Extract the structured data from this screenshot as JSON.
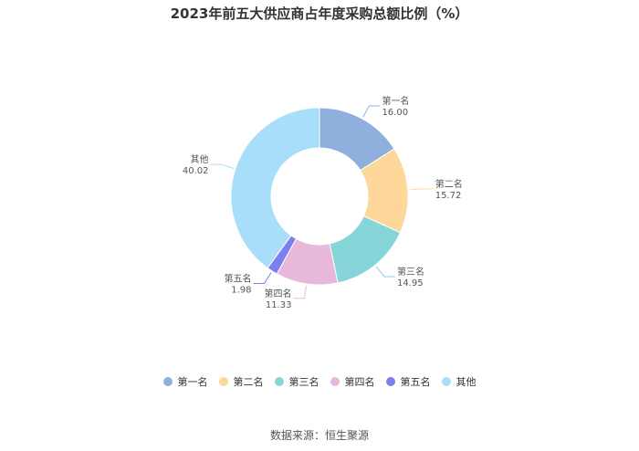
{
  "chart_data": {
    "type": "pie",
    "title": "2023年前五大供应商占年度采购总额比例（%）",
    "categories": [
      "第一名",
      "第二名",
      "第三名",
      "第四名",
      "第五名",
      "其他"
    ],
    "values": [
      16.0,
      15.72,
      14.95,
      11.33,
      1.98,
      40.02
    ],
    "value_labels": [
      "16.00",
      "15.72",
      "14.95",
      "11.33",
      "1.98",
      "40.02"
    ],
    "colors": [
      "#8fb0dc",
      "#fed89a",
      "#86d6d9",
      "#e8b8da",
      "#7b7ff0",
      "#a8def9"
    ],
    "donut": true,
    "legend_position": "bottom"
  },
  "source": "数据来源：恒生聚源"
}
